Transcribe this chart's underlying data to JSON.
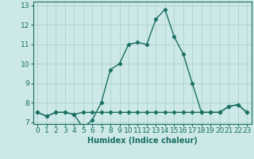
{
  "humidex_x": [
    0,
    1,
    2,
    3,
    4,
    5,
    6,
    7,
    8,
    9,
    10,
    11,
    12,
    13,
    14,
    15,
    16,
    17,
    18,
    19,
    20,
    21,
    22,
    23
  ],
  "humidex_y": [
    7.5,
    7.3,
    7.5,
    7.5,
    7.4,
    6.7,
    7.1,
    8.0,
    9.7,
    10.0,
    11.0,
    11.1,
    11.0,
    12.3,
    12.8,
    11.4,
    10.5,
    9.0,
    7.5,
    7.5,
    7.5,
    7.8,
    7.9,
    7.5
  ],
  "flat_x": [
    0,
    1,
    2,
    3,
    4,
    5,
    6,
    7,
    8,
    9,
    10,
    11,
    12,
    13,
    14,
    15,
    16,
    17,
    18,
    19,
    20,
    21,
    22,
    23
  ],
  "flat_y": [
    7.5,
    7.3,
    7.5,
    7.5,
    7.4,
    7.5,
    7.5,
    7.5,
    7.5,
    7.5,
    7.5,
    7.5,
    7.5,
    7.5,
    7.5,
    7.5,
    7.5,
    7.5,
    7.5,
    7.5,
    7.5,
    7.8,
    7.9,
    7.5
  ],
  "xlabel": "Humidex (Indice chaleur)",
  "ylim": [
    6.9,
    13.2
  ],
  "xlim": [
    -0.5,
    23.5
  ],
  "yticks": [
    7,
    8,
    9,
    10,
    11,
    12,
    13
  ],
  "xticks": [
    0,
    1,
    2,
    3,
    4,
    5,
    6,
    7,
    8,
    9,
    10,
    11,
    12,
    13,
    14,
    15,
    16,
    17,
    18,
    19,
    20,
    21,
    22,
    23
  ],
  "line_color": "#1a7060",
  "bg_color": "#cce8e8",
  "grid_color": "#aacccc",
  "marker": "D",
  "marker_size": 2.2,
  "line_width": 1.0,
  "xlabel_fontsize": 7,
  "tick_fontsize": 6.5
}
